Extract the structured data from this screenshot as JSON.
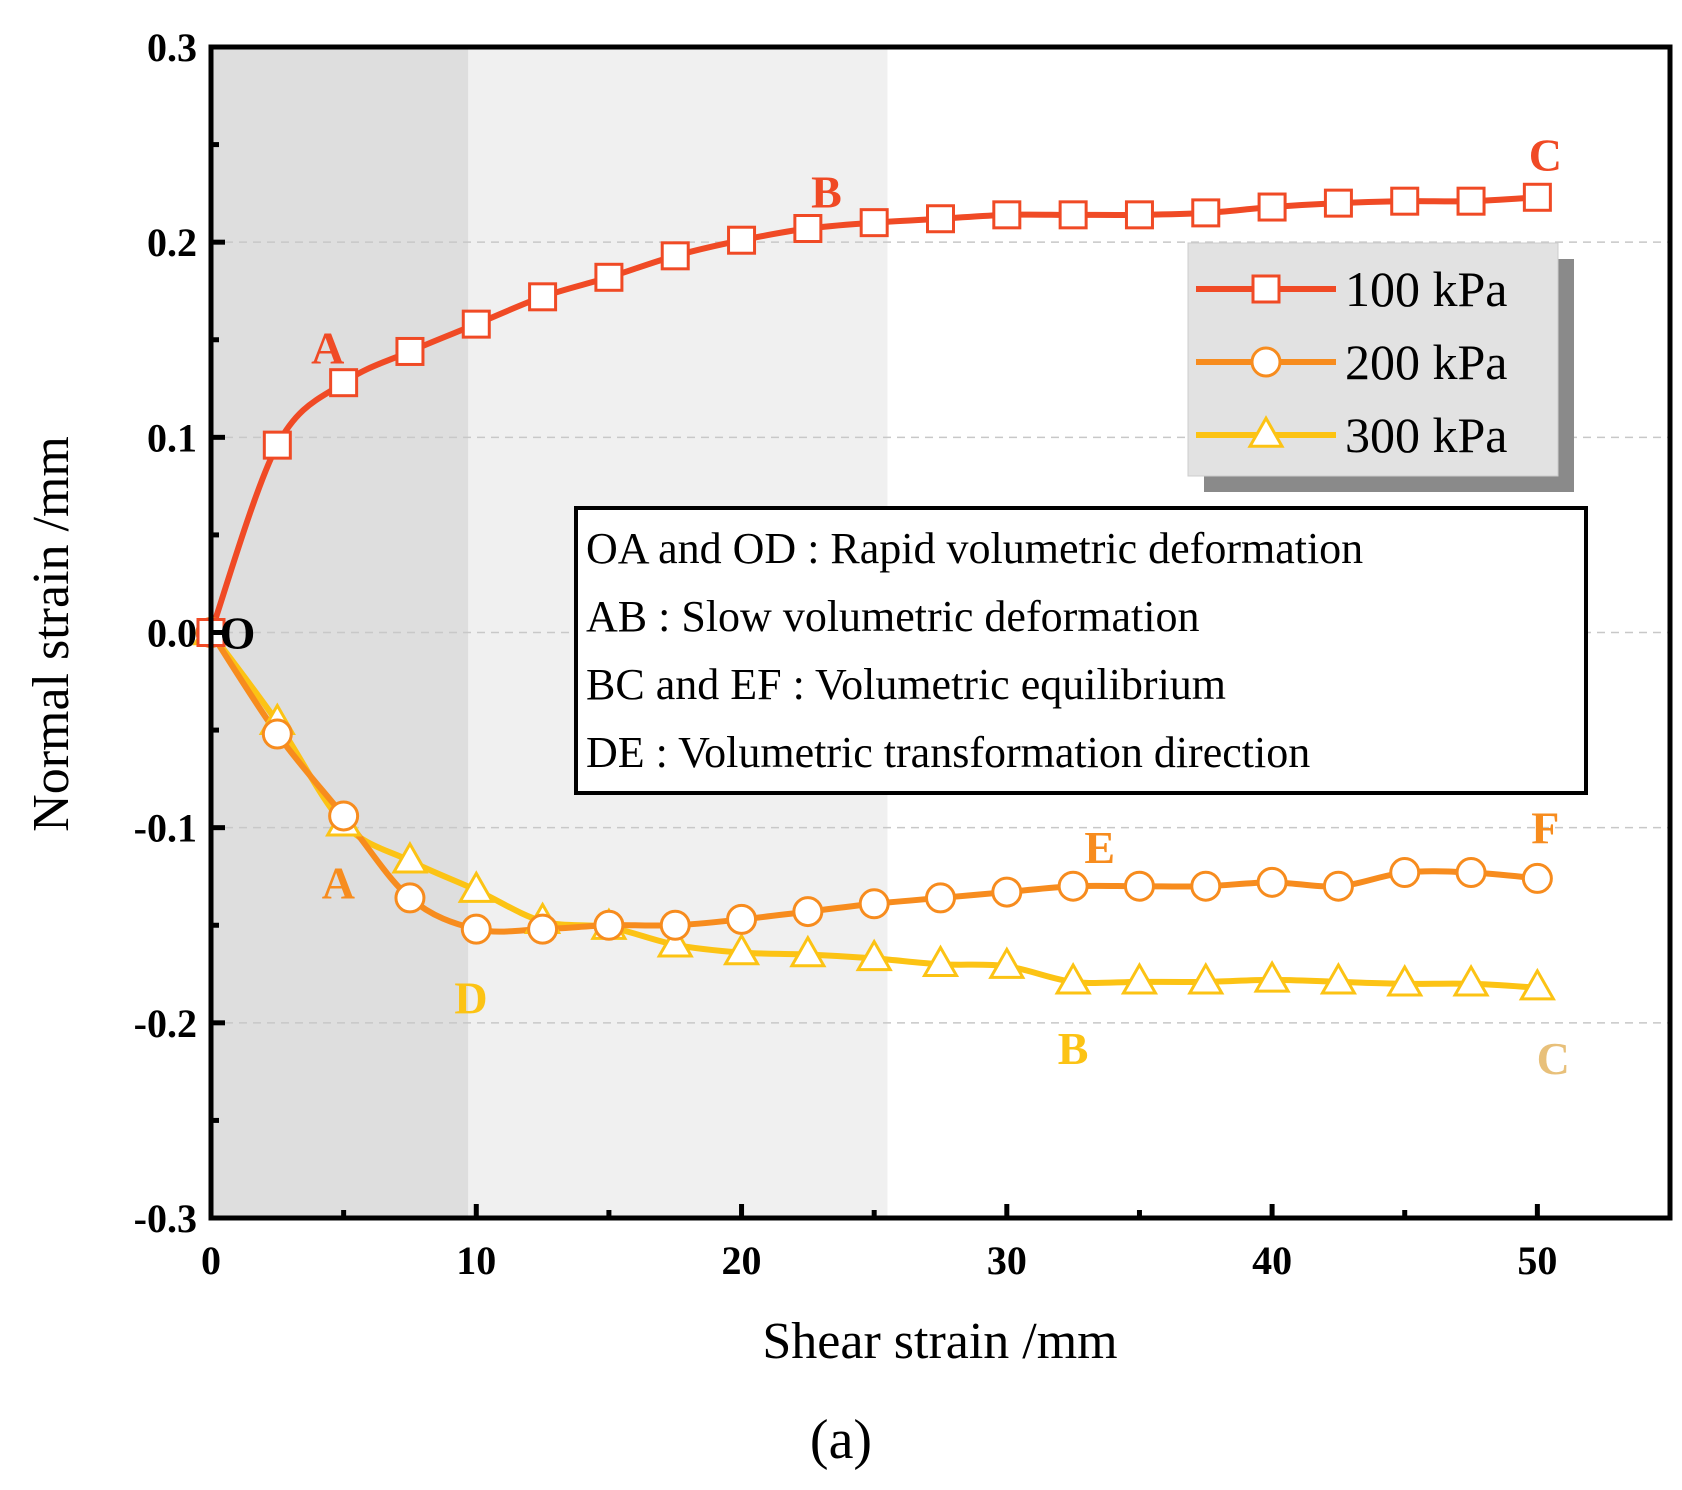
{
  "chart_data": {
    "type": "line",
    "panel_label": "(a)",
    "xlabel": "Shear strain /mm",
    "ylabel": "Normal strain /mm",
    "xlim": [
      0,
      55
    ],
    "ylim": [
      -0.3,
      0.3
    ],
    "x_ticks": [
      0,
      10,
      20,
      30,
      40,
      50
    ],
    "x_tick_labels": [
      "0",
      "10",
      "20",
      "30",
      "40",
      "50"
    ],
    "y_ticks": [
      0.3,
      0.2,
      0.1,
      0.0,
      -0.1,
      -0.2,
      -0.3
    ],
    "y_tick_labels": [
      "0.3",
      "0.2",
      "0.1",
      "0.0",
      "-0.1",
      "-0.2",
      "-0.3"
    ],
    "shaded_regions": [
      {
        "x_start": 0,
        "x_end": 9.7,
        "color": "#dedede"
      },
      {
        "x_start": 9.7,
        "x_end": 25.5,
        "color": "#f0f0f0"
      }
    ],
    "gridlines_y": [
      0.2,
      0.1,
      0.0,
      -0.1,
      -0.2
    ],
    "x": [
      0,
      2.5,
      5,
      7.5,
      10,
      12.5,
      15,
      17.5,
      20,
      22.5,
      25,
      27.5,
      30,
      32.5,
      35,
      37.5,
      40,
      42.5,
      45,
      47.5,
      50
    ],
    "series": [
      {
        "name": "100 kPa",
        "marker": "square",
        "color": "#f04a25",
        "values": [
          0.0,
          0.096,
          0.128,
          0.144,
          0.158,
          0.172,
          0.182,
          0.193,
          0.201,
          0.207,
          0.21,
          0.212,
          0.214,
          0.214,
          0.214,
          0.215,
          0.218,
          0.22,
          0.221,
          0.221,
          0.223
        ]
      },
      {
        "name": "200 kPa",
        "marker": "circle",
        "color": "#f78c1e",
        "values": [
          0.0,
          -0.052,
          -0.094,
          -0.136,
          -0.152,
          -0.152,
          -0.15,
          -0.15,
          -0.147,
          -0.143,
          -0.139,
          -0.136,
          -0.133,
          -0.13,
          -0.13,
          -0.13,
          -0.128,
          -0.13,
          -0.123,
          -0.123,
          -0.126
        ]
      },
      {
        "name": "300 kPa",
        "marker": "triangle",
        "color": "#fcc314",
        "values": [
          0.0,
          -0.046,
          -0.098,
          -0.117,
          -0.132,
          -0.148,
          -0.151,
          -0.16,
          -0.164,
          -0.165,
          -0.167,
          -0.17,
          -0.171,
          -0.179,
          -0.179,
          -0.179,
          -0.178,
          -0.179,
          -0.18,
          -0.18,
          -0.182
        ]
      }
    ],
    "point_labels": [
      {
        "text": "O",
        "x": 1.0,
        "y": 0.0,
        "color": "#000000"
      },
      {
        "text": "A",
        "x": 4.4,
        "y": 0.146,
        "color": "#f04a25"
      },
      {
        "text": "B",
        "x": 23.2,
        "y": 0.226,
        "color": "#f04a25"
      },
      {
        "text": "C",
        "x": 50.3,
        "y": 0.245,
        "color": "#f04a25"
      },
      {
        "text": "A",
        "x": 4.8,
        "y": -0.128,
        "color": "#f78c1e"
      },
      {
        "text": "D",
        "x": 9.8,
        "y": -0.187,
        "color": "#fcc314"
      },
      {
        "text": "E",
        "x": 33.5,
        "y": -0.11,
        "color": "#f78c1e"
      },
      {
        "text": "F",
        "x": 50.3,
        "y": -0.1,
        "color": "#f78c1e"
      },
      {
        "text": "B",
        "x": 32.5,
        "y": -0.213,
        "color": "#fcc314"
      },
      {
        "text": "C",
        "x": 50.6,
        "y": -0.218,
        "color": "#e8c07a"
      }
    ],
    "legend": {
      "position": "top-right",
      "entries": [
        "100 kPa",
        "200 kPa",
        "300 kPa"
      ]
    },
    "annotation_box": {
      "lines": [
        "OA and OD : Rapid volumetric deformation",
        "AB : Slow volumetric deformation",
        "BC and EF : Volumetric equilibrium",
        "DE : Volumetric transformation direction"
      ]
    }
  }
}
